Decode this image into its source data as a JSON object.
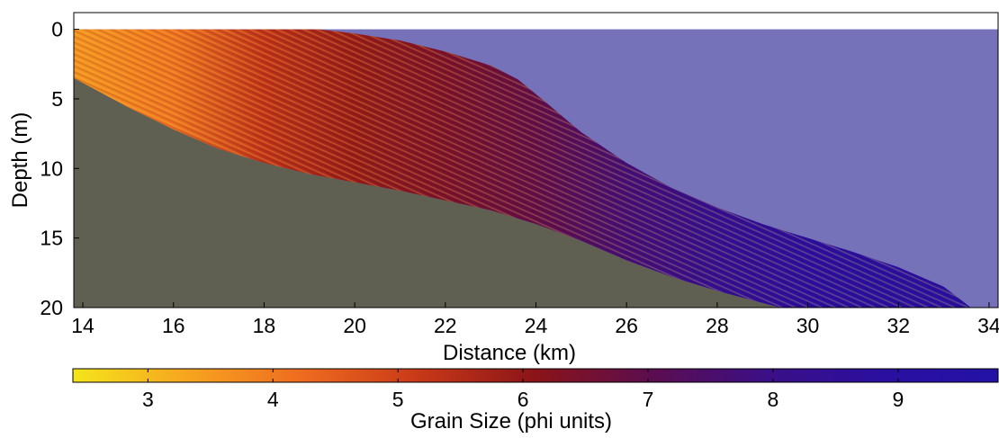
{
  "chart_data": [
    {
      "type": "heatmap",
      "description_kind": "cross-section",
      "xlabel": "Distance (km)",
      "ylabel": "Depth (m)",
      "xlim": [
        13.8,
        34.2
      ],
      "ylim": [
        20,
        -1.2
      ],
      "x_ticks": [
        14,
        16,
        18,
        20,
        22,
        24,
        26,
        28,
        30,
        32,
        34
      ],
      "y_ticks": [
        0,
        5,
        10,
        15,
        20
      ],
      "y_reversed": true,
      "grid": false,
      "colors": {
        "water": "#7572b9",
        "substrate": "#5f5f52",
        "colormap": [
          "#f4e51b",
          "#f7a41f",
          "#ee6a1f",
          "#c83818",
          "#8b1418",
          "#5c0d4f",
          "#3b0f86",
          "#2a0fa0",
          "#2312a6"
        ]
      },
      "surfaces": {
        "sediment_top": [
          [
            13.8,
            0
          ],
          [
            19.2,
            0
          ],
          [
            20,
            0.3
          ],
          [
            21,
            0.8
          ],
          [
            22,
            1.6
          ],
          [
            23,
            2.6
          ],
          [
            23.6,
            3.6
          ],
          [
            24.2,
            5.2
          ],
          [
            25,
            7.4
          ],
          [
            26,
            9.6
          ],
          [
            27,
            11.4
          ],
          [
            28,
            12.8
          ],
          [
            29,
            14.0
          ],
          [
            30,
            15.0
          ],
          [
            31,
            16.0
          ],
          [
            32,
            17.1
          ],
          [
            33,
            18.5
          ],
          [
            33.6,
            20
          ]
        ],
        "basement": [
          [
            13.8,
            3.5
          ],
          [
            15,
            5.6
          ],
          [
            16,
            7.2
          ],
          [
            17,
            8.6
          ],
          [
            18,
            9.6
          ],
          [
            19,
            10.4
          ],
          [
            20,
            11.0
          ],
          [
            21,
            11.6
          ],
          [
            22,
            12.3
          ],
          [
            23,
            13.0
          ],
          [
            24,
            14.0
          ],
          [
            25,
            15.2
          ],
          [
            26,
            16.6
          ],
          [
            27,
            17.8
          ],
          [
            28,
            18.8
          ],
          [
            28.8,
            19.5
          ],
          [
            29.4,
            20
          ]
        ]
      },
      "grain_size_gradient_x": [
        [
          13.8,
          3.6
        ],
        [
          16,
          4.1
        ],
        [
          18,
          5.3
        ],
        [
          20,
          5.9
        ],
        [
          22,
          6.4
        ],
        [
          24,
          6.9
        ],
        [
          26,
          7.7
        ],
        [
          28,
          8.4
        ],
        [
          30,
          9.0
        ],
        [
          34,
          9.3
        ]
      ]
    },
    {
      "type": "heatmap",
      "role": "colorbar",
      "xlabel": "Grain Size (phi units)",
      "xlim": [
        2.4,
        9.8
      ],
      "x_ticks": [
        3,
        4,
        5,
        6,
        7,
        8,
        9
      ],
      "colormap": [
        "#f4e51b",
        "#f7a41f",
        "#ee6a1f",
        "#c83818",
        "#8b1418",
        "#5c0d4f",
        "#3b0f86",
        "#2a0fa0",
        "#2312a6"
      ]
    }
  ]
}
